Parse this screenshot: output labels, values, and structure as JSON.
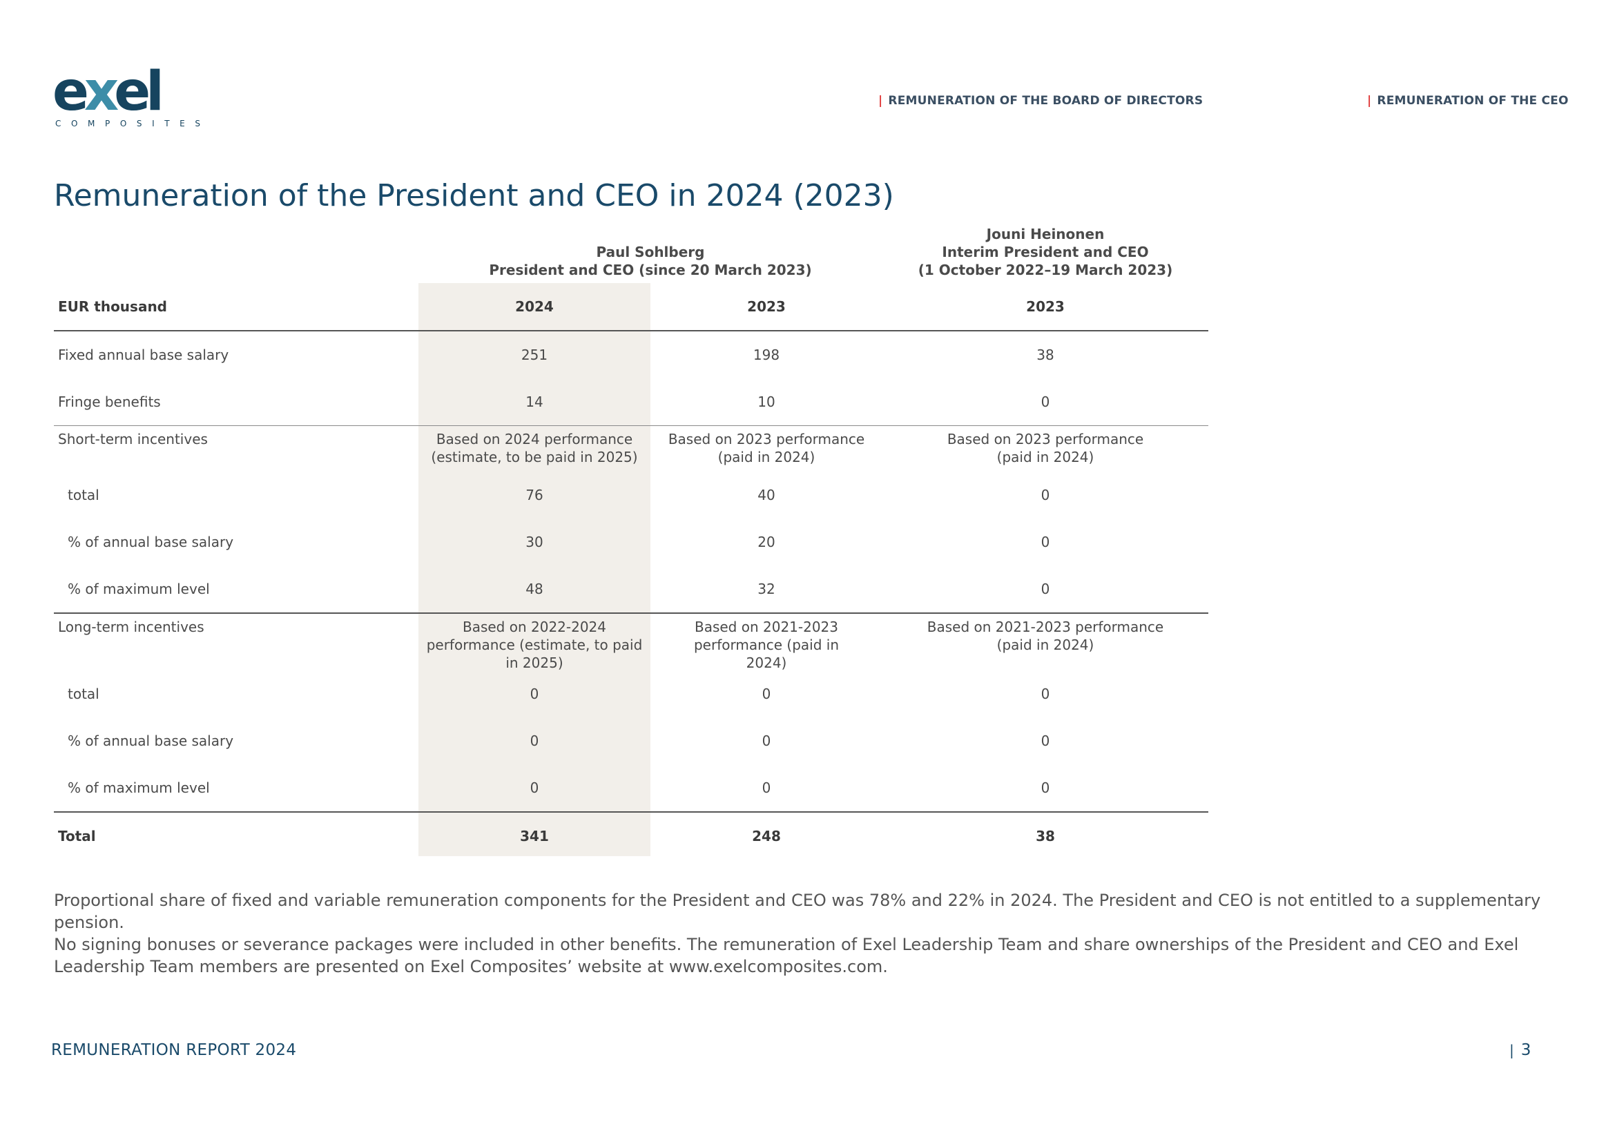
{
  "logo": {
    "word_start": "e",
    "word_x": "x",
    "word_end": "el",
    "sub": "COMPOSITES"
  },
  "nav": {
    "separator": "|",
    "board": "REMUNERATION OF THE BOARD OF DIRECTORS",
    "ceo": "REMUNERATION OF THE CEO"
  },
  "title": "Remuneration of the President and CEO in 2024 (2023)",
  "table": {
    "person1": {
      "name": "Paul Sohlberg",
      "role": "President and CEO (since 20 March 2023)"
    },
    "person2": {
      "name": "Jouni Heinonen",
      "role": "Interim President and CEO",
      "period": "(1 October 2022–19 March 2023)"
    },
    "header": {
      "unit": "EUR thousand",
      "col1": "2024",
      "col2": "2023",
      "col3": "2023"
    },
    "rows": {
      "fixed_salary": {
        "label": "Fixed annual base salary",
        "v1": "251",
        "v2": "198",
        "v3": "38"
      },
      "fringe": {
        "label": "Fringe benefits",
        "v1": "14",
        "v2": "10",
        "v3": "0"
      },
      "sti": {
        "label": "Short-term incentives",
        "basis1": "Based on 2024 performance (estimate, to be paid in 2025)",
        "basis2": "Based on 2023 performance (paid in 2024)",
        "basis3": "Based on 2023 performance (paid in 2024)"
      },
      "sti_total": {
        "label": "total",
        "v1": "76",
        "v2": "40",
        "v3": "0"
      },
      "sti_pct_salary": {
        "label": "% of annual base salary",
        "v1": "30",
        "v2": "20",
        "v3": "0"
      },
      "sti_pct_max": {
        "label": "% of maximum level",
        "v1": "48",
        "v2": "32",
        "v3": "0"
      },
      "lti": {
        "label": "Long-term incentives",
        "basis1": "Based on 2022-2024 performance (estimate, to paid in 2025)",
        "basis2": "Based on 2021-2023 performance (paid in 2024)",
        "basis3": "Based on 2021-2023 performance (paid in 2024)"
      },
      "lti_total": {
        "label": "total",
        "v1": "0",
        "v2": "0",
        "v3": "0"
      },
      "lti_pct_salary": {
        "label": "% of annual base salary",
        "v1": "0",
        "v2": "0",
        "v3": "0"
      },
      "lti_pct_max": {
        "label": "% of maximum level",
        "v1": "0",
        "v2": "0",
        "v3": "0"
      },
      "total": {
        "label": "Total",
        "v1": "341",
        "v2": "248",
        "v3": "38"
      }
    }
  },
  "footnote": {
    "line1": "Proportional share of fixed and variable remuneration components for the President and CEO was 78% and 22% in 2024. The President and CEO is not entitled to a supplementary pension.",
    "line2": "No signing bonuses or severance packages were included in other benefits. The remuneration of Exel Leadership Team and share ownerships of the President and CEO and Exel Leadership Team members are presented on Exel Composites’ website at www.exelcomposites.com."
  },
  "footer": {
    "report": "REMUNERATION REPORT 2024",
    "separator": "|",
    "page": "3"
  },
  "colors": {
    "brand_dark": "#16445f",
    "brand_light": "#3d8da8",
    "accent_red": "#e03a3a",
    "highlight_column": "#f2efea"
  }
}
